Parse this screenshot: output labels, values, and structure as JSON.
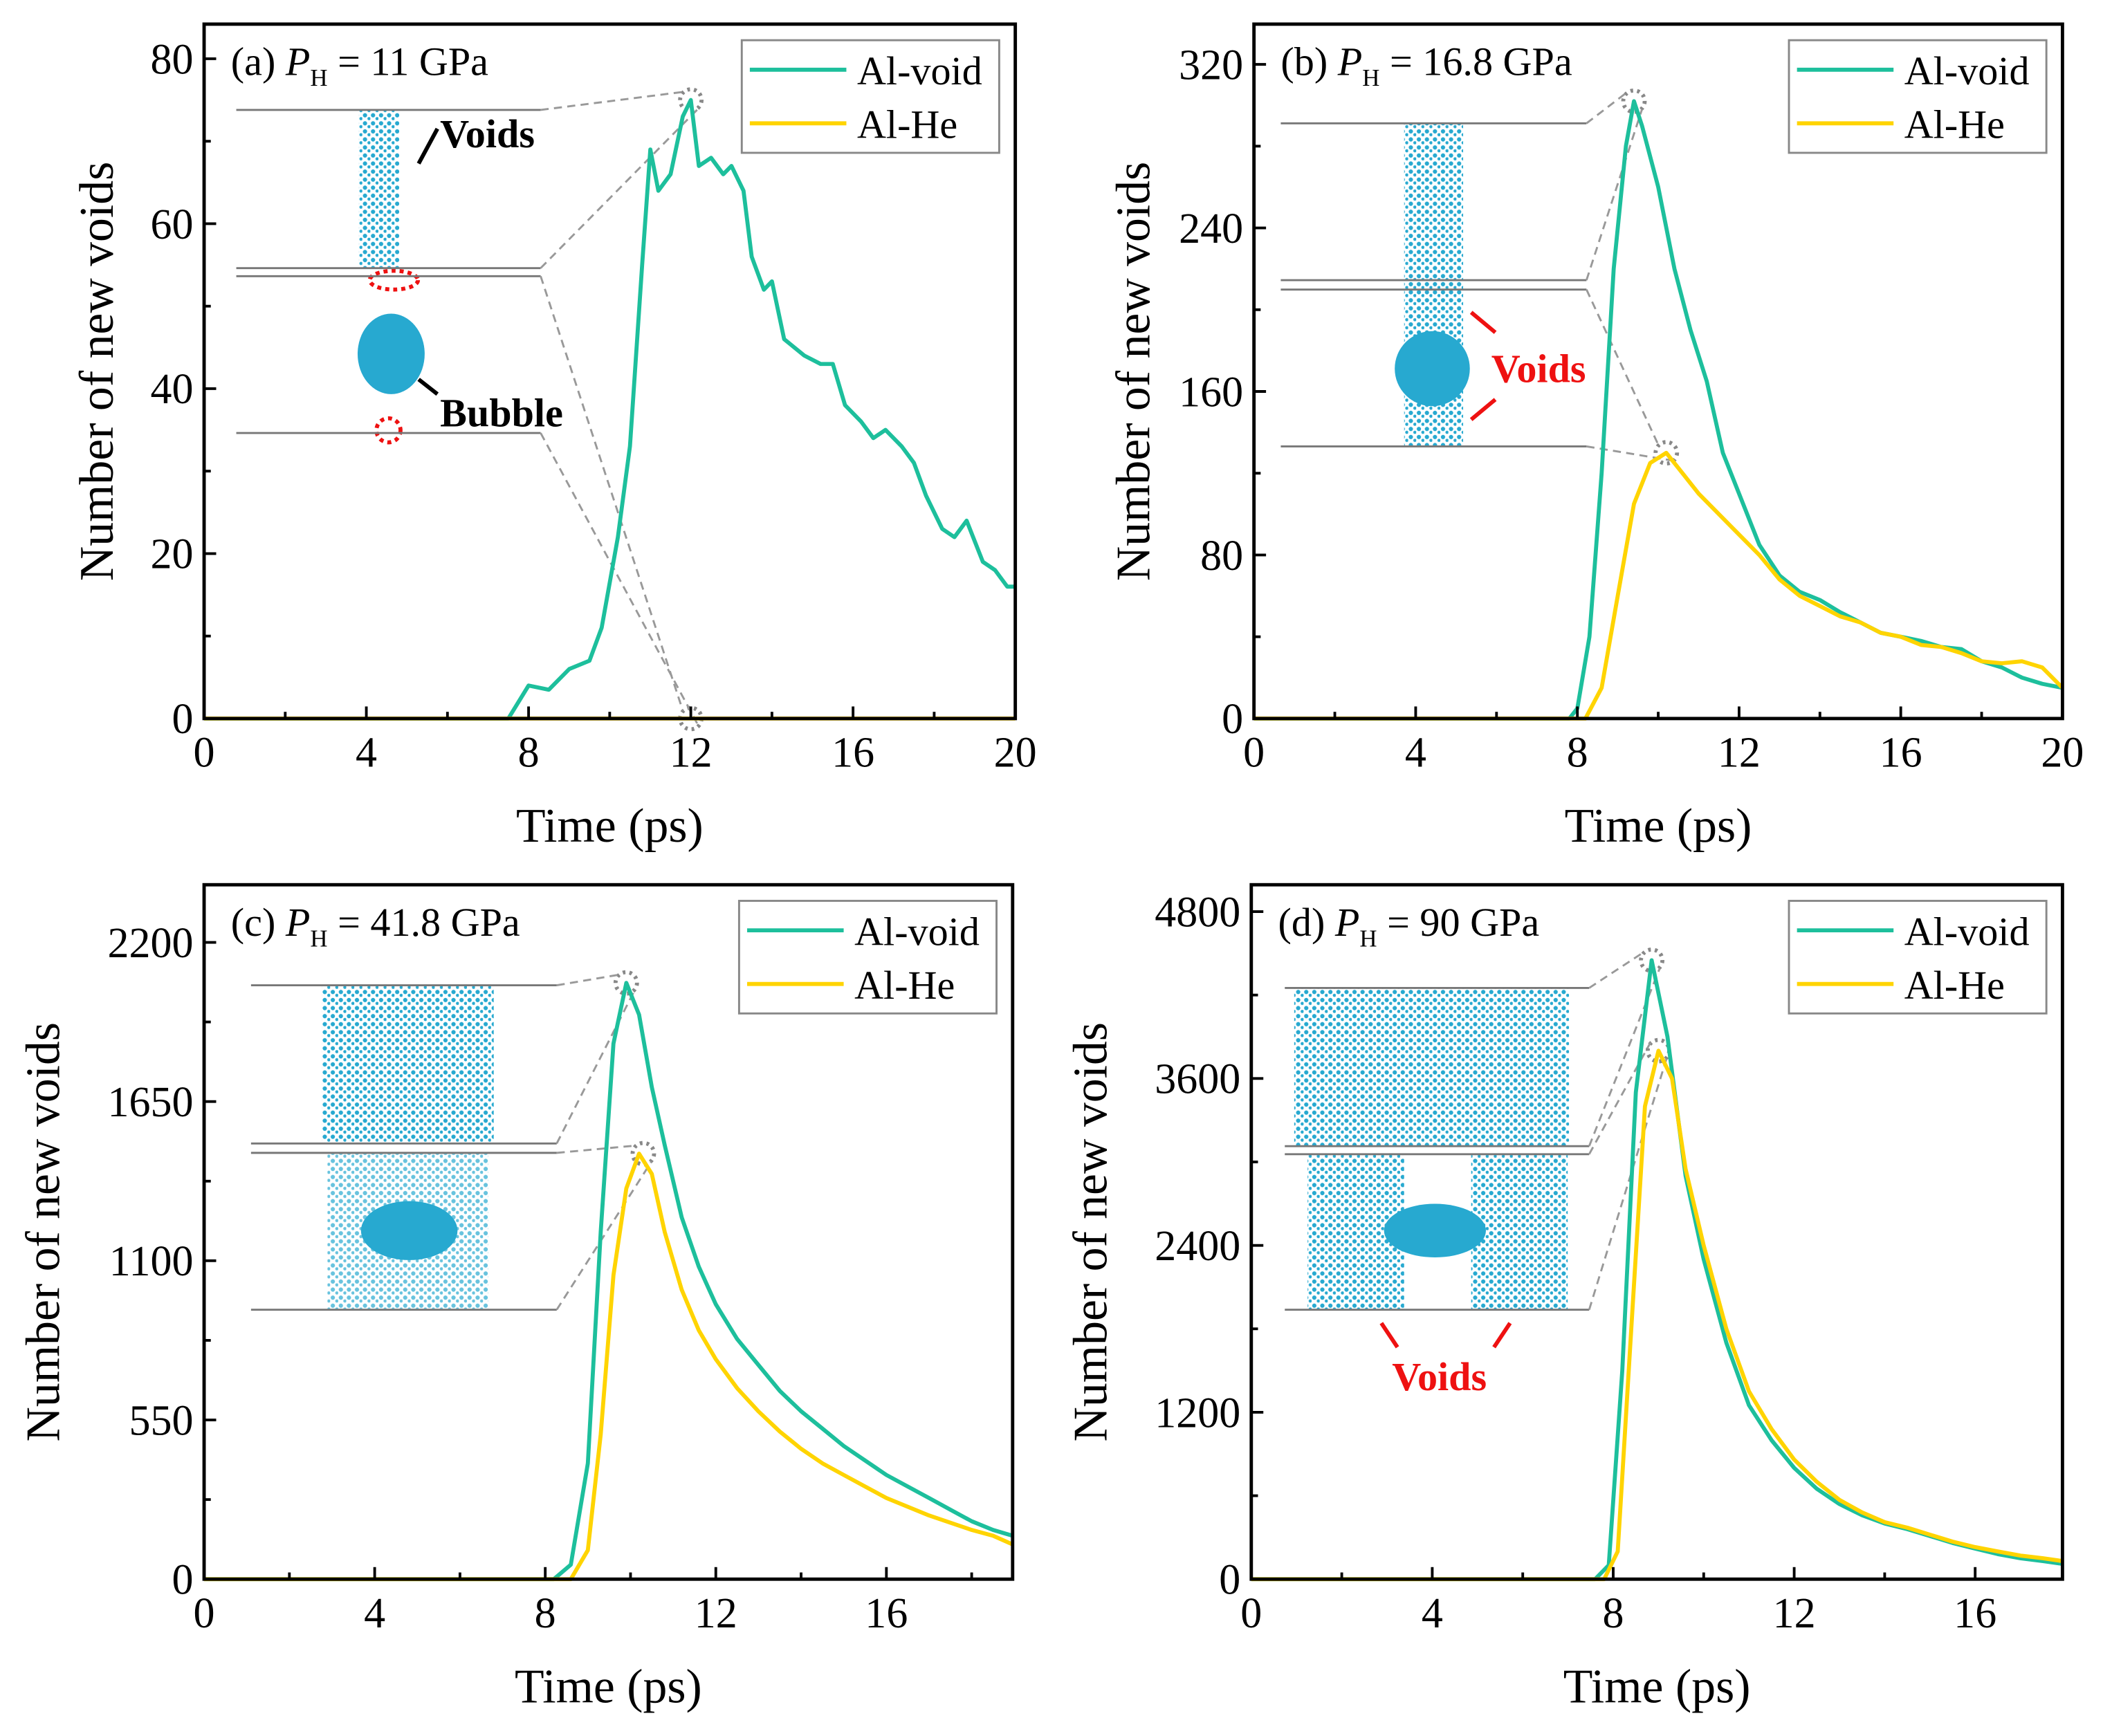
{
  "colors": {
    "al_void": "#1dbf9c",
    "al_he": "#ffd400",
    "inset": "#27a9d0",
    "annot_red": "#ee1111"
  },
  "chart_data": [
    {
      "type": "line",
      "panel": "(a)",
      "symbol": "P",
      "subscript": "H",
      "pressure": "= 11 GPa",
      "xlabel": "Time (ps)",
      "ylabel": "Number of new voids",
      "xlim": [
        0,
        20
      ],
      "ylim": [
        0,
        84.2
      ],
      "xticks": [
        0,
        4,
        8,
        12,
        16,
        20
      ],
      "yticks": [
        0,
        20,
        40,
        60,
        80
      ],
      "legend": "top-right",
      "legend_entries": [
        "Al-void",
        "Al-He"
      ],
      "annotations": [
        "Voids",
        "Bubble"
      ],
      "series": [
        {
          "name": "Al-void",
          "x": [
            0,
            7.5,
            8,
            8.5,
            9,
            9.5,
            9.8,
            10.2,
            10.5,
            10.8,
            11,
            11.2,
            11.5,
            11.8,
            12,
            12.2,
            12.5,
            12.8,
            13,
            13.3,
            13.5,
            13.8,
            14,
            14.3,
            14.8,
            15.2,
            15.5,
            15.8,
            16.2,
            16.5,
            16.8,
            17.2,
            17.5,
            17.8,
            18.2,
            18.5,
            18.8,
            19.2,
            19.5,
            19.8,
            20
          ],
          "y": [
            0,
            0,
            4,
            3.5,
            6,
            7,
            11,
            22,
            33,
            55,
            69,
            64,
            66,
            73,
            75,
            67,
            68,
            66,
            67,
            64,
            56,
            52,
            53,
            46,
            44,
            43,
            43,
            38,
            36,
            34,
            35,
            33,
            31,
            27,
            23,
            22,
            24,
            19,
            18,
            16,
            16
          ]
        },
        {
          "name": "Al-He",
          "x": [
            0,
            20
          ],
          "y": [
            0,
            0
          ]
        }
      ]
    },
    {
      "type": "line",
      "panel": "(b)",
      "symbol": "P",
      "subscript": "H",
      "pressure": "= 16.8 GPa",
      "xlabel": "Time (ps)",
      "ylabel": "Number of new voids",
      "xlim": [
        0,
        20
      ],
      "ylim": [
        0,
        339.7
      ],
      "xticks": [
        0,
        4,
        8,
        12,
        16,
        20
      ],
      "yticks": [
        0,
        80,
        160,
        240,
        320
      ],
      "legend": "top-right",
      "legend_entries": [
        "Al-void",
        "Al-He"
      ],
      "annotations": [
        "Voids"
      ],
      "series": [
        {
          "name": "Al-void",
          "x": [
            0,
            7.8,
            8,
            8.3,
            8.6,
            8.9,
            9.2,
            9.4,
            9.6,
            10,
            10.4,
            10.8,
            11.2,
            11.6,
            12,
            12.5,
            13,
            13.5,
            14,
            14.5,
            15,
            15.5,
            16,
            16.5,
            17,
            17.5,
            18,
            18.5,
            19,
            19.5,
            20
          ],
          "y": [
            0,
            0,
            5,
            40,
            120,
            220,
            280,
            302,
            290,
            260,
            220,
            190,
            165,
            130,
            110,
            85,
            70,
            62,
            58,
            52,
            47,
            42,
            40,
            38,
            35,
            34,
            28,
            25,
            20,
            17,
            15
          ]
        },
        {
          "name": "Al-He",
          "x": [
            0,
            8.2,
            8.6,
            9,
            9.4,
            9.8,
            10.2,
            10.6,
            11,
            11.5,
            12,
            12.5,
            13,
            13.5,
            14,
            14.5,
            15,
            15.5,
            16,
            16.5,
            17,
            17.5,
            18,
            18.5,
            19,
            19.5,
            20
          ],
          "y": [
            0,
            0,
            15,
            60,
            105,
            125,
            130,
            120,
            110,
            100,
            90,
            80,
            68,
            60,
            55,
            50,
            47,
            42,
            40,
            36,
            35,
            32,
            28,
            27,
            28,
            25,
            15
          ]
        }
      ]
    },
    {
      "type": "line",
      "panel": "(c)",
      "symbol": "P",
      "subscript": "H",
      "pressure": "= 41.8 GPa",
      "xlabel": "Time (ps)",
      "ylabel": "Number of new voids",
      "xlim": [
        0,
        18.96
      ],
      "ylim": [
        0,
        2399
      ],
      "xticks": [
        0,
        4,
        8,
        12,
        16
      ],
      "yticks": [
        0,
        550,
        1100,
        1650,
        2200
      ],
      "legend": "top-right",
      "legend_entries": [
        "Al-void",
        "Al-He"
      ],
      "annotations": [],
      "series": [
        {
          "name": "Al-void",
          "x": [
            0,
            8.2,
            8.6,
            9,
            9.3,
            9.6,
            9.9,
            10.2,
            10.5,
            10.8,
            11.2,
            11.6,
            12,
            12.5,
            13,
            13.5,
            14,
            14.5,
            15,
            15.5,
            16,
            16.5,
            17,
            17.5,
            18,
            18.5,
            18.96
          ],
          "y": [
            0,
            0,
            50,
            400,
            1200,
            1850,
            2060,
            1950,
            1700,
            1500,
            1250,
            1080,
            950,
            830,
            740,
            650,
            580,
            520,
            460,
            410,
            360,
            320,
            280,
            240,
            200,
            170,
            150
          ]
        },
        {
          "name": "Al-He",
          "x": [
            0,
            8.6,
            9,
            9.3,
            9.6,
            9.9,
            10.2,
            10.5,
            10.8,
            11.2,
            11.6,
            12,
            12.5,
            13,
            13.5,
            14,
            14.5,
            15,
            15.5,
            16,
            16.5,
            17,
            17.5,
            18,
            18.5,
            18.96
          ],
          "y": [
            0,
            0,
            100,
            500,
            1050,
            1350,
            1470,
            1400,
            1200,
            1000,
            860,
            760,
            660,
            580,
            510,
            450,
            400,
            360,
            320,
            280,
            250,
            220,
            195,
            170,
            150,
            120
          ]
        }
      ]
    },
    {
      "type": "line",
      "panel": "(d)",
      "symbol": "P",
      "subscript": "H",
      "pressure": "= 90 GPa",
      "xlabel": "Time (ps)",
      "ylabel": "Number of new voids",
      "xlim": [
        0,
        17.93
      ],
      "ylim": [
        0,
        4993
      ],
      "xticks": [
        0,
        4,
        8,
        12,
        16
      ],
      "yticks": [
        0,
        1200,
        2400,
        3600,
        4800
      ],
      "legend": "top-right",
      "legend_entries": [
        "Al-void",
        "Al-He"
      ],
      "annotations": [
        "Voids"
      ],
      "series": [
        {
          "name": "Al-void",
          "x": [
            0,
            7.6,
            7.9,
            8.2,
            8.5,
            8.85,
            9.2,
            9.6,
            10,
            10.5,
            11,
            11.5,
            12,
            12.5,
            13,
            13.5,
            14,
            14.5,
            15,
            15.5,
            16,
            16.5,
            17,
            17.5,
            17.93
          ],
          "y": [
            0,
            0,
            100,
            1500,
            3500,
            4450,
            3900,
            2900,
            2300,
            1700,
            1250,
            1000,
            800,
            650,
            540,
            460,
            400,
            360,
            310,
            260,
            220,
            180,
            150,
            130,
            110
          ]
        },
        {
          "name": "Al-He",
          "x": [
            0,
            7.8,
            8.1,
            8.4,
            8.7,
            9,
            9.3,
            9.6,
            10,
            10.5,
            11,
            11.5,
            12,
            12.5,
            13,
            13.5,
            14,
            14.5,
            15,
            15.5,
            16,
            16.5,
            17,
            17.5,
            17.93
          ],
          "y": [
            0,
            0,
            200,
            1800,
            3400,
            3800,
            3600,
            2950,
            2400,
            1800,
            1350,
            1080,
            860,
            700,
            570,
            480,
            410,
            370,
            320,
            270,
            230,
            200,
            170,
            150,
            130
          ]
        }
      ]
    }
  ]
}
